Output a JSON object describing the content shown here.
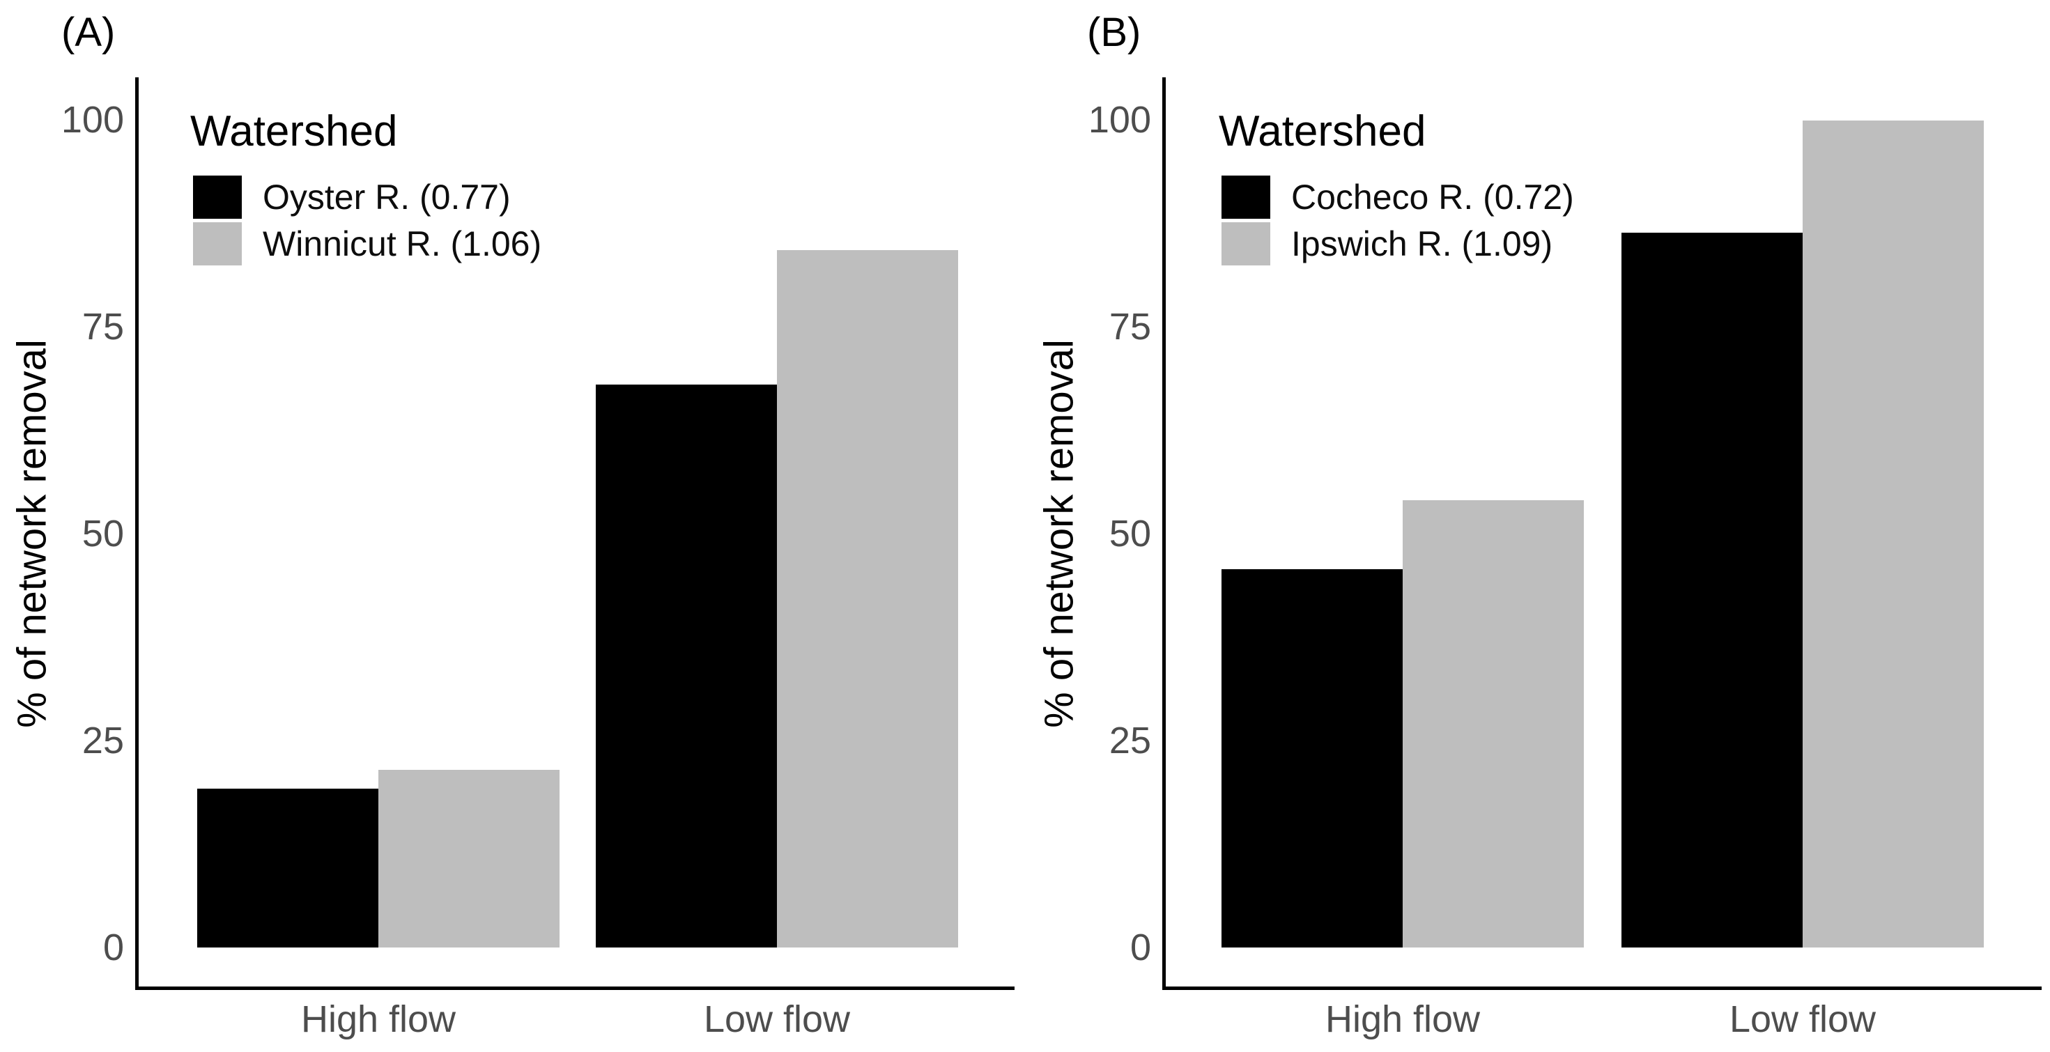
{
  "figure": {
    "y_axis_title": "% of network removal",
    "legend_title": "Watershed",
    "colors": {
      "bar_black": "#000000",
      "bar_gray": "#bebebe",
      "axis_line": "#000000",
      "tick_text": "#4d4d4d"
    }
  },
  "chart_data": [
    {
      "type": "bar",
      "panel": "A",
      "title": "(A)",
      "categories": [
        "High flow",
        "Low flow"
      ],
      "series": [
        {
          "name": "Oyster R. (0.77)",
          "color": "#000000",
          "values": [
            19.2,
            68.0
          ]
        },
        {
          "name": "Winnicut R. (1.06)",
          "color": "#bebebe",
          "values": [
            21.5,
            84.3
          ]
        }
      ],
      "legend_title": "Watershed",
      "xlabel": "",
      "ylabel": "% of network removal",
      "ylim": [
        0,
        100
      ],
      "yticks": [
        0,
        25,
        50,
        75,
        100
      ],
      "grid": "off",
      "legend_position": "top-left-inside"
    },
    {
      "type": "bar",
      "panel": "B",
      "title": "(B)",
      "categories": [
        "High flow",
        "Low flow"
      ],
      "series": [
        {
          "name": "Cocheco R. (0.72)",
          "color": "#000000",
          "values": [
            45.7,
            86.4
          ]
        },
        {
          "name": "Ipswich R. (1.09)",
          "color": "#bebebe",
          "values": [
            54.0,
            99.9
          ]
        }
      ],
      "legend_title": "Watershed",
      "xlabel": "",
      "ylabel": "% of network removal",
      "ylim": [
        0,
        100
      ],
      "yticks": [
        0,
        25,
        50,
        75,
        100
      ],
      "grid": "off",
      "legend_position": "top-left-inside"
    }
  ]
}
